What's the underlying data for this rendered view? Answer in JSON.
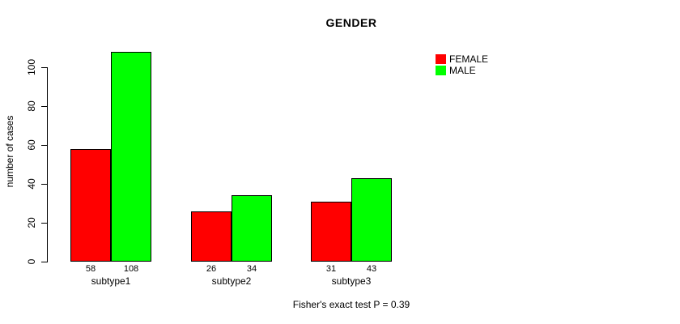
{
  "chart_data": {
    "type": "bar",
    "title": "GENDER",
    "categories": [
      "subtype1",
      "subtype2",
      "subtype3"
    ],
    "series": [
      {
        "name": "FEMALE",
        "color": "#FF0000",
        "values": [
          58,
          26,
          31
        ]
      },
      {
        "name": "MALE",
        "color": "#00FF00",
        "values": [
          108,
          34,
          43
        ]
      }
    ],
    "ylabel": "number of cases",
    "xlabel": "",
    "yticks": [
      0,
      20,
      40,
      60,
      80,
      100
    ],
    "ylim": [
      0,
      110
    ],
    "grid": false,
    "legend_position": "top-right",
    "bar_value_labels": true,
    "annotation": "Fisher's exact test P = 0.39"
  },
  "colors": {
    "axis": "#000000",
    "background": "#FFFFFF",
    "female": "#FF0000",
    "male": "#00FF00"
  }
}
